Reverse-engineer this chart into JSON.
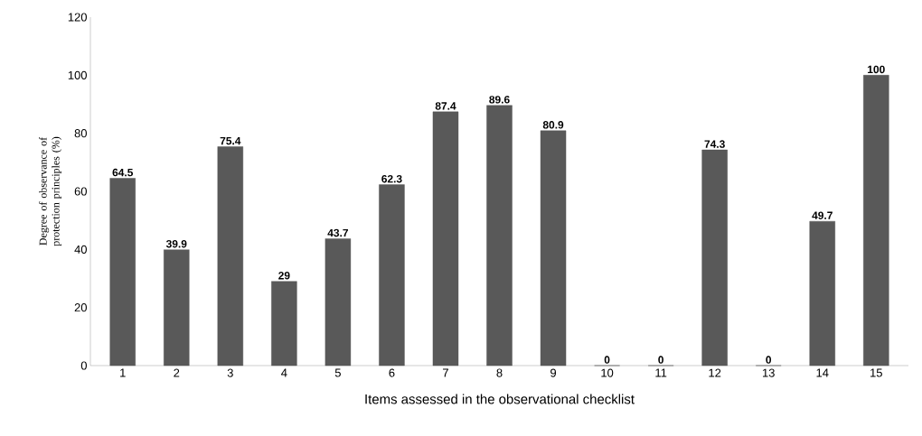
{
  "chart_data": {
    "type": "bar",
    "xlabel": "Items assessed in the observational checklist",
    "ylabel": "Degree of observance of protection principles (%)",
    "categories": [
      "1",
      "2",
      "3",
      "4",
      "5",
      "6",
      "7",
      "8",
      "9",
      "10",
      "11",
      "12",
      "13",
      "14",
      "15"
    ],
    "values": [
      64.5,
      39.9,
      75.4,
      29,
      43.7,
      62.3,
      87.4,
      89.6,
      80.9,
      0,
      0,
      74.3,
      0,
      49.7,
      100
    ],
    "color": "#595959",
    "ylim": [
      0,
      120
    ],
    "yticks": [
      0,
      20,
      40,
      60,
      80,
      100,
      120
    ],
    "data_labels": true
  }
}
